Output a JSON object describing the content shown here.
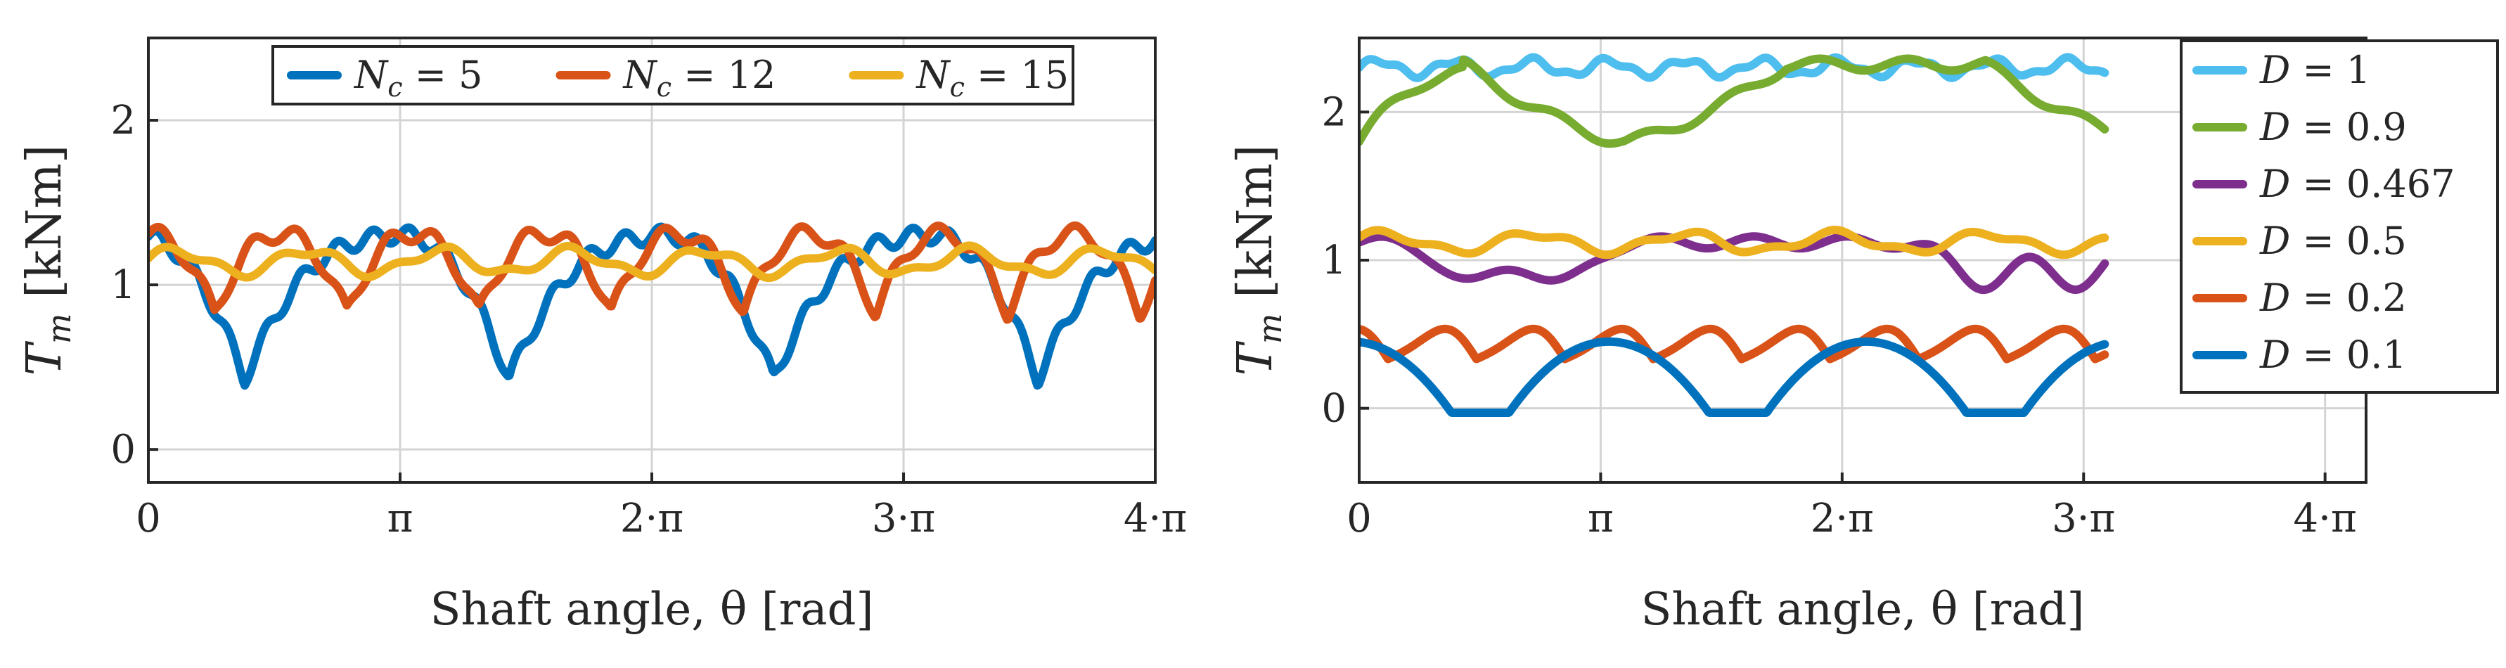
{
  "chart_data": [
    {
      "type": "line",
      "xlabel": "Shaft angle, θ [rad]",
      "ylabel": "Tm [kNm]",
      "ylabel_main": "T",
      "ylabel_sub": "m",
      "ylabel_unit": "[kNm]",
      "xlim": [
        0,
        12.566
      ],
      "ylim": [
        -0.2,
        2.5
      ],
      "xticks": [
        0,
        3.1416,
        6.2832,
        9.4248,
        12.5664
      ],
      "xticklabels": [
        "0",
        "π",
        "2·π",
        "3·π",
        "4·π"
      ],
      "yticks": [
        0,
        1,
        2
      ],
      "yticklabels": [
        "0",
        "1",
        "2"
      ],
      "grid": true,
      "legend_position": "top-center",
      "series": [
        {
          "name": "Nc = 5",
          "label_main": "N",
          "label_sub": "c",
          "label_rest": " = 5",
          "color": "#0072BD",
          "model": {
            "kind": "rectified",
            "base": 1.25,
            "amp": 0.78,
            "period": 3.3,
            "phase": 0.45,
            "ripple_amp": 0.05,
            "ripple_freq": 14
          }
        },
        {
          "name": "Nc = 12",
          "label_main": "N",
          "label_sub": "c",
          "label_rest": " = 12",
          "color": "#D95319",
          "model": {
            "kind": "rectified",
            "base": 1.25,
            "amp": 0.36,
            "period": 1.65,
            "phase": 0.0,
            "ripple_amp": 0.05,
            "ripple_freq": 11
          }
        },
        {
          "name": "Nc = 15",
          "label_main": "N",
          "label_sub": "c",
          "label_rest": " = 15",
          "color": "#EDB120",
          "model": {
            "kind": "ripple",
            "base": 1.14,
            "amp": 0.07,
            "freq": 3.8,
            "phase": 0.3
          }
        }
      ]
    },
    {
      "type": "line",
      "xlabel": "Shaft angle, θ [rad]",
      "ylabel": "Tm [kNm]",
      "ylabel_main": "T",
      "ylabel_sub": "m",
      "ylabel_unit": "[kNm]",
      "xlim": [
        0,
        13.1
      ],
      "ylim": [
        -0.5,
        2.5
      ],
      "xticks": [
        0,
        3.1416,
        6.2832,
        9.4248,
        12.5664
      ],
      "xticklabels": [
        "0",
        "π",
        "2·π",
        "3·π",
        "4·π"
      ],
      "yticks": [
        0,
        1,
        2
      ],
      "yticklabels": [
        "0",
        "1",
        "2"
      ],
      "grid": true,
      "legend_position": "right",
      "series": [
        {
          "name": "D = 1",
          "label_main": "D",
          "label_sub": "",
          "label_rest": " = 1",
          "color": "#4DBEEE",
          "model": {
            "kind": "ripple",
            "base": 2.3,
            "amp": 0.05,
            "freq": 6.3,
            "phase": 0.0,
            "xmax": 9.7
          }
        },
        {
          "name": "D = 0.9",
          "label_main": "D",
          "label_sub": "",
          "label_rest": " = 0.9",
          "color": "#77AC30",
          "model": {
            "kind": "arch_down",
            "base": 2.32,
            "low": 1.8,
            "period": 6.8,
            "start": 1.35,
            "ripple_amp": 0.04,
            "ripple_freq": 5.5,
            "xmax": 9.7
          }
        },
        {
          "name": "D = 0.467",
          "label_main": "D",
          "label_sub": "",
          "label_rest": " = 0.467",
          "color": "#7E2F8E",
          "model": {
            "kind": "dips",
            "base": 1.12,
            "dip": 0.28,
            "period": 6.9,
            "centers": [
              1.45,
              2.6,
              8.1,
              9.3
            ],
            "width": 0.75,
            "ripple_amp": 0.04,
            "ripple_freq": 5.2,
            "xmax": 9.7
          }
        },
        {
          "name": "D = 0.5",
          "label_main": "D",
          "label_sub": "",
          "label_rest": " = 0.5",
          "color": "#EDB120",
          "model": {
            "kind": "ripple",
            "base": 1.12,
            "amp": 0.06,
            "freq": 3.2,
            "phase": 0.6,
            "xmax": 9.7
          }
        },
        {
          "name": "D = 0.2",
          "label_main": "D",
          "label_sub": "",
          "label_rest": " = 0.2",
          "color": "#D95319",
          "model": {
            "kind": "rectified",
            "base": 0.48,
            "amp": 0.12,
            "period": 1.15,
            "phase": 0.2,
            "ripple_amp": 0.0,
            "ripple_freq": 1,
            "xmax": 9.7
          }
        },
        {
          "name": "D = 0.1",
          "label_main": "D",
          "label_sub": "",
          "label_rest": " = 0.1",
          "color": "#0072BD",
          "model": {
            "kind": "arch_up",
            "top": 0.45,
            "floor": -0.03,
            "period": 3.35,
            "start": -1.4,
            "width": 2.6,
            "xmax": 9.7
          }
        }
      ]
    }
  ]
}
